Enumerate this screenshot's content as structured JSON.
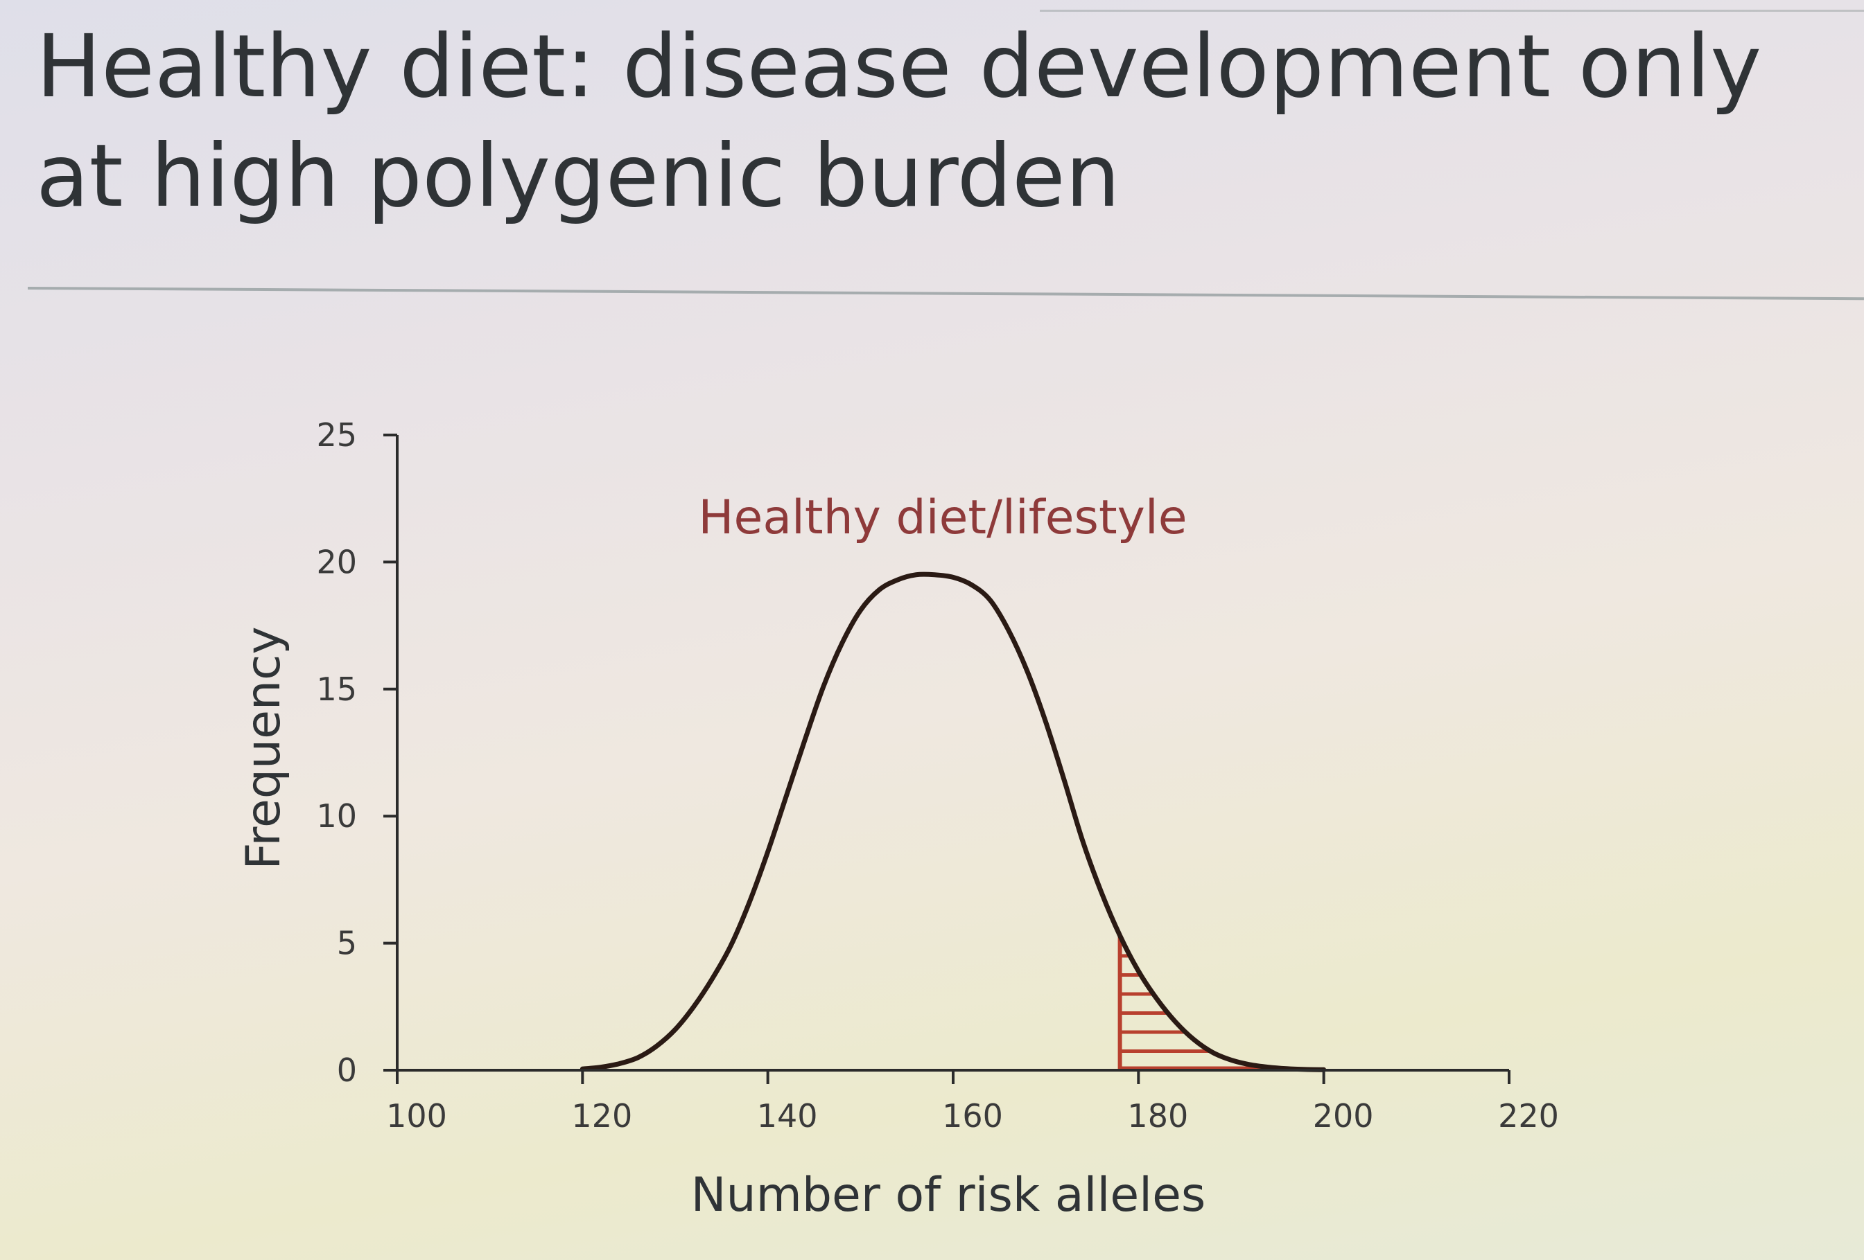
{
  "slide": {
    "title": "Healthy diet: disease development only at high polygenic burden"
  },
  "chart_data": {
    "type": "line",
    "title": "",
    "annotation": "Healthy diet/lifestyle",
    "xlabel": "Number of risk alleles",
    "ylabel": "Frequency",
    "xlim": [
      100,
      220
    ],
    "ylim": [
      0,
      25
    ],
    "x_ticks": [
      100,
      120,
      140,
      160,
      180,
      200,
      220
    ],
    "y_ticks": [
      0,
      5,
      10,
      15,
      20,
      25
    ],
    "grid": false,
    "series": [
      {
        "x": [
          120,
          122,
          124,
          126,
          128,
          130,
          132,
          134,
          136,
          138,
          140,
          142,
          144,
          146,
          148,
          150,
          152,
          154,
          156,
          158,
          160,
          162,
          164,
          166,
          168,
          170,
          172,
          174,
          176,
          178,
          180,
          182,
          184,
          186,
          188,
          190,
          192,
          194,
          196,
          198,
          200
        ],
        "values": [
          0.05,
          0.12,
          0.26,
          0.5,
          0.95,
          1.6,
          2.5,
          3.6,
          4.9,
          6.6,
          8.6,
          10.8,
          13.0,
          15.1,
          16.8,
          18.1,
          18.9,
          19.3,
          19.5,
          19.5,
          19.4,
          19.1,
          18.5,
          17.3,
          15.7,
          13.7,
          11.4,
          9.0,
          7.0,
          5.3,
          3.9,
          2.8,
          1.9,
          1.2,
          0.7,
          0.4,
          0.22,
          0.12,
          0.06,
          0.03,
          0.02
        ],
        "color": "#2a1a14"
      }
    ],
    "shaded_region": {
      "x_start": 178,
      "x_end": 200,
      "style": "horizontal hatch",
      "color": "#b8402e"
    },
    "colors": {
      "curve": "#2a1a14",
      "hatch": "#b8402e",
      "annotation": "#8e3a3a",
      "axis": "#2b2b2b"
    }
  }
}
